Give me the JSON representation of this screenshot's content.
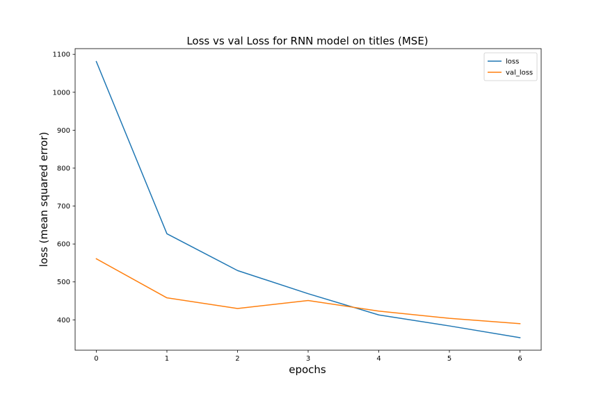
{
  "chart_data": {
    "type": "line",
    "title": "Loss vs val Loss for RNN model on titles (MSE)",
    "xlabel": "epochs",
    "ylabel": "loss (mean squared error)",
    "x": [
      0,
      1,
      2,
      3,
      4,
      5,
      6
    ],
    "xticks": [
      "0",
      "1",
      "2",
      "3",
      "4",
      "5",
      "6"
    ],
    "yticks": [
      "400",
      "500",
      "600",
      "700",
      "800",
      "900",
      "1000",
      "1100"
    ],
    "ytick_values": [
      400,
      500,
      600,
      700,
      800,
      900,
      1000,
      1100
    ],
    "xlim": [
      -0.3,
      6.3
    ],
    "ylim": [
      320,
      1115
    ],
    "grid": false,
    "legend_position": "top-right",
    "series": [
      {
        "name": "loss",
        "color": "#1f77b4",
        "values": [
          1081,
          627,
          530,
          469,
          413,
          384,
          353
        ]
      },
      {
        "name": "val_loss",
        "color": "#ff7f0e",
        "values": [
          561,
          458,
          430,
          451,
          423,
          404,
          390
        ]
      }
    ]
  }
}
